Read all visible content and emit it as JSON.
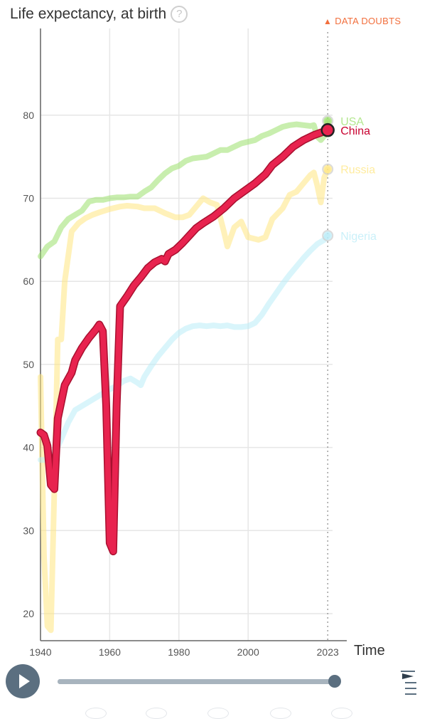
{
  "header": {
    "title": "Life expectancy, at birth",
    "help_icon": "?",
    "doubts_icon": "warning-icon",
    "doubts_label": "DATA DOUBTS"
  },
  "controls": {
    "play_icon": "play-icon",
    "speed_icon": "speed-menu-icon",
    "progress": 1.0
  },
  "chart_data": {
    "type": "line",
    "xlabel": "Time",
    "ylabel": "",
    "title": "Life expectancy, at birth",
    "xlim": [
      1940,
      2025
    ],
    "ylim": [
      17.5,
      90
    ],
    "x_ticks": [
      1940,
      1960,
      1980,
      2000,
      2023
    ],
    "y_ticks": [
      20,
      30,
      40,
      50,
      60,
      70,
      80
    ],
    "grid": true,
    "current_year": 2023,
    "series": [
      {
        "name": "USA",
        "color": "#9be06b",
        "highlighted": false,
        "end_value": 79.3,
        "points": [
          [
            1940,
            63
          ],
          [
            1942,
            64.2
          ],
          [
            1944,
            64.8
          ],
          [
            1946,
            66.5
          ],
          [
            1948,
            67.5
          ],
          [
            1950,
            68
          ],
          [
            1952,
            68.5
          ],
          [
            1954,
            69.6
          ],
          [
            1956,
            69.8
          ],
          [
            1958,
            69.8
          ],
          [
            1960,
            70
          ],
          [
            1962,
            70.1
          ],
          [
            1964,
            70.1
          ],
          [
            1966,
            70.2
          ],
          [
            1968,
            70.2
          ],
          [
            1970,
            70.8
          ],
          [
            1972,
            71.3
          ],
          [
            1974,
            72.2
          ],
          [
            1976,
            73
          ],
          [
            1978,
            73.6
          ],
          [
            1980,
            73.9
          ],
          [
            1982,
            74.5
          ],
          [
            1984,
            74.8
          ],
          [
            1986,
            74.9
          ],
          [
            1988,
            75
          ],
          [
            1990,
            75.4
          ],
          [
            1992,
            75.8
          ],
          [
            1994,
            75.8
          ],
          [
            1996,
            76.2
          ],
          [
            1998,
            76.6
          ],
          [
            2000,
            76.8
          ],
          [
            2002,
            77
          ],
          [
            2004,
            77.5
          ],
          [
            2006,
            77.8
          ],
          [
            2008,
            78.2
          ],
          [
            2010,
            78.6
          ],
          [
            2012,
            78.8
          ],
          [
            2014,
            78.9
          ],
          [
            2016,
            78.8
          ],
          [
            2018,
            78.7
          ],
          [
            2019,
            78.8
          ],
          [
            2020,
            77.4
          ],
          [
            2021,
            77
          ],
          [
            2022,
            77.5
          ],
          [
            2023,
            79.3
          ]
        ]
      },
      {
        "name": "China",
        "color": "#e8234f",
        "highlighted": true,
        "end_value": 78.2,
        "points": [
          [
            1940,
            41.8
          ],
          [
            1941,
            41.5
          ],
          [
            1942,
            40.2
          ],
          [
            1943,
            35.5
          ],
          [
            1944,
            35
          ],
          [
            1945,
            43.5
          ],
          [
            1946,
            45.5
          ],
          [
            1947,
            47.5
          ],
          [
            1949,
            49
          ],
          [
            1950,
            50.5
          ],
          [
            1952,
            52
          ],
          [
            1954,
            53.2
          ],
          [
            1956,
            54.2
          ],
          [
            1957,
            54.8
          ],
          [
            1958,
            54
          ],
          [
            1959,
            45
          ],
          [
            1960,
            28.5
          ],
          [
            1961,
            27.5
          ],
          [
            1962,
            45
          ],
          [
            1963,
            57
          ],
          [
            1965,
            58.2
          ],
          [
            1967,
            59.5
          ],
          [
            1969,
            60.5
          ],
          [
            1971,
            61.6
          ],
          [
            1973,
            62.3
          ],
          [
            1975,
            62.7
          ],
          [
            1976,
            62.4
          ],
          [
            1977,
            63.3
          ],
          [
            1979,
            63.8
          ],
          [
            1981,
            64.6
          ],
          [
            1983,
            65.5
          ],
          [
            1985,
            66.4
          ],
          [
            1987,
            67
          ],
          [
            1990,
            67.8
          ],
          [
            1993,
            68.8
          ],
          [
            1996,
            70
          ],
          [
            1999,
            70.9
          ],
          [
            2002,
            71.8
          ],
          [
            2005,
            72.9
          ],
          [
            2007,
            74
          ],
          [
            2010,
            75
          ],
          [
            2013,
            76.2
          ],
          [
            2016,
            77
          ],
          [
            2019,
            77.6
          ],
          [
            2021,
            77.9
          ],
          [
            2023,
            78.2
          ]
        ]
      },
      {
        "name": "Russia",
        "color": "#ffe680",
        "highlighted": false,
        "end_value": 73.5,
        "points": [
          [
            1940,
            48.5
          ],
          [
            1941,
            27
          ],
          [
            1942,
            18.5
          ],
          [
            1943,
            18
          ],
          [
            1944,
            35
          ],
          [
            1945,
            53
          ],
          [
            1946,
            53
          ],
          [
            1947,
            60
          ],
          [
            1949,
            66
          ],
          [
            1951,
            67
          ],
          [
            1953,
            67.6
          ],
          [
            1955,
            68
          ],
          [
            1957,
            68.3
          ],
          [
            1960,
            68.7
          ],
          [
            1963,
            69
          ],
          [
            1965,
            69.1
          ],
          [
            1968,
            69
          ],
          [
            1970,
            68.8
          ],
          [
            1973,
            68.8
          ],
          [
            1976,
            68.2
          ],
          [
            1979,
            67.7
          ],
          [
            1981,
            67.7
          ],
          [
            1983,
            68
          ],
          [
            1986,
            69.5
          ],
          [
            1987,
            70
          ],
          [
            1989,
            69.5
          ],
          [
            1991,
            69.2
          ],
          [
            1993,
            66
          ],
          [
            1994,
            64.2
          ],
          [
            1996,
            66.5
          ],
          [
            1998,
            67.2
          ],
          [
            2000,
            65.3
          ],
          [
            2003,
            65
          ],
          [
            2005,
            65.3
          ],
          [
            2007,
            67.5
          ],
          [
            2010,
            68.8
          ],
          [
            2012,
            70.4
          ],
          [
            2014,
            70.8
          ],
          [
            2016,
            71.8
          ],
          [
            2018,
            72.8
          ],
          [
            2019,
            73.1
          ],
          [
            2020,
            71.5
          ],
          [
            2021,
            69.5
          ],
          [
            2022,
            72.5
          ],
          [
            2023,
            73.5
          ]
        ]
      },
      {
        "name": "Nigeria",
        "color": "#b9ecf8",
        "highlighted": false,
        "end_value": 65.5,
        "points": [
          [
            1940,
            38.5
          ],
          [
            1942,
            38.5
          ],
          [
            1944,
            39.2
          ],
          [
            1946,
            41
          ],
          [
            1948,
            43
          ],
          [
            1950,
            44.5
          ],
          [
            1952,
            45
          ],
          [
            1954,
            45.5
          ],
          [
            1956,
            46
          ],
          [
            1958,
            46.5
          ],
          [
            1960,
            47
          ],
          [
            1962,
            47.4
          ],
          [
            1964,
            48
          ],
          [
            1966,
            48.3
          ],
          [
            1968,
            47.8
          ],
          [
            1969,
            47.5
          ],
          [
            1970,
            48.5
          ],
          [
            1972,
            49.8
          ],
          [
            1974,
            51
          ],
          [
            1976,
            52
          ],
          [
            1978,
            53
          ],
          [
            1980,
            53.8
          ],
          [
            1982,
            54.3
          ],
          [
            1984,
            54.6
          ],
          [
            1986,
            54.7
          ],
          [
            1988,
            54.6
          ],
          [
            1990,
            54.7
          ],
          [
            1992,
            54.6
          ],
          [
            1994,
            54.7
          ],
          [
            1996,
            54.5
          ],
          [
            1998,
            54.5
          ],
          [
            2000,
            54.6
          ],
          [
            2002,
            55
          ],
          [
            2004,
            56
          ],
          [
            2006,
            57.3
          ],
          [
            2008,
            58.5
          ],
          [
            2010,
            59.7
          ],
          [
            2012,
            60.8
          ],
          [
            2014,
            61.8
          ],
          [
            2016,
            62.8
          ],
          [
            2018,
            63.7
          ],
          [
            2020,
            64.5
          ],
          [
            2022,
            65
          ],
          [
            2023,
            65.5
          ]
        ]
      }
    ]
  }
}
